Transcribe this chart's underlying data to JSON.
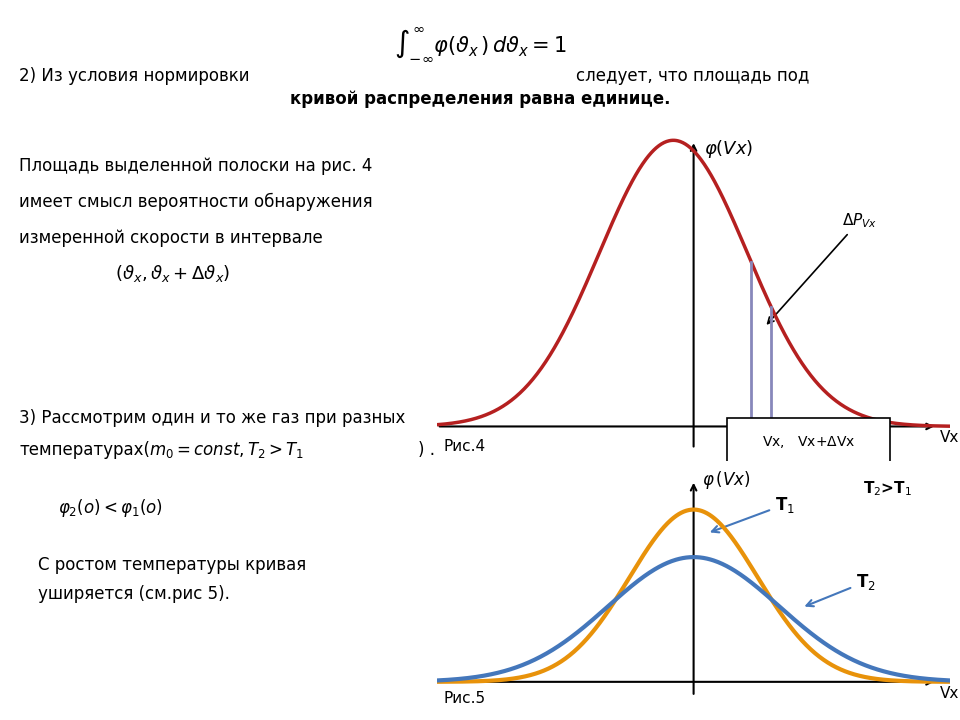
{
  "bg_color": "#ffffff",
  "fig4_bg": "#ffffcc",
  "text_color": "#000000",
  "curve1_color": "#b52020",
  "strip_color": "#8888bb",
  "orange_color": "#e8920a",
  "blue_color": "#4477bb",
  "arrow_color": "#4477bb",
  "title_formula": "$\\int_{-\\infty}^{\\infty} \\varphi(\\vartheta_x\\,)\\,d\\vartheta_x = 1$",
  "text_line1": "2) Из условия нормировки",
  "text_line2": "следует, что площадь под",
  "text_line3": "кривой распределения равна единице.",
  "text_left1": "Площадь выделенной полоски на рис. 4",
  "text_left2": "имеет смысл вероятности обнаружения",
  "text_left3": "измеренной скорости в интервале",
  "text_interval": "$(\\vartheta_x,\\vartheta_x + \\Delta\\vartheta_x)$",
  "label_fig4": "Рис.4",
  "label_fig5": "Рис.5",
  "label_phi_vx_fig4": "$\\varphi(Vx)$",
  "label_phi_vx_fig5": "$\\varphi\\,(Vx)$",
  "label_vx": "Vx",
  "label_delta_p": "$\\Delta P_{Vx}$",
  "label_strip": "Vx,   Vx+$\\Delta$Vx",
  "label_T1": "T$_1$",
  "label_T2": "T$_2$",
  "label_T2_T1": "T$_2$>T$_1$",
  "text3_line1": "3) Рассмотрим один и то же газ при разных",
  "text3_line2a": "температурах(",
  "text3_line2b": "$m_0 = const, T_2 > T_1$",
  "text3_line2c": ") .",
  "text3_line3": "$\\varphi_2(o) < \\varphi_1(o)$",
  "text3_line4": "С ростом температуры кривая",
  "text3_line5": "уширяется (см.рис 5)."
}
